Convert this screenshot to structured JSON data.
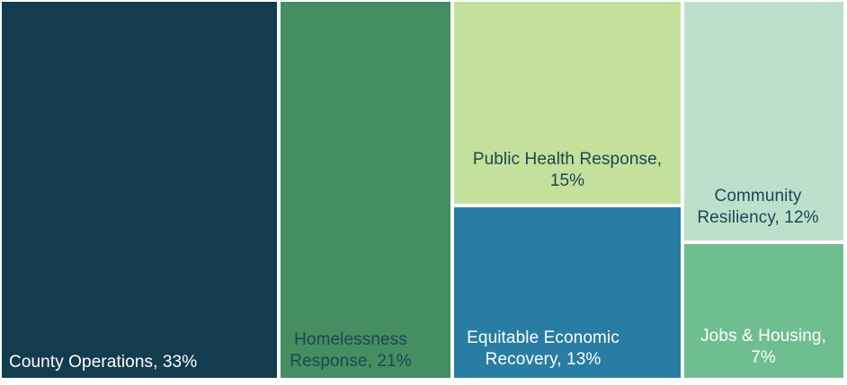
{
  "chart_data": {
    "type": "treemap",
    "title": "",
    "layout": "columnar treemap, white gaps between tiles, labels anchored to tile bottoms",
    "background": "#ffffff",
    "categories": [
      "County Operations",
      "Homelessness Response",
      "Public Health Response",
      "Equitable Economic Recovery",
      "Community Resiliency",
      "Jobs & Housing"
    ],
    "values": [
      33,
      21,
      15,
      13,
      12,
      7
    ],
    "items": [
      {
        "label": "County Operations",
        "value_pct": 33,
        "display": "County Operations, 33%",
        "color": "#143c4f",
        "text_color": "#ffffff"
      },
      {
        "label": "Homelessness Response",
        "value_pct": 21,
        "display": "Homelessness Response, 21%",
        "color": "#448e61",
        "text_color": "#1d4655"
      },
      {
        "label": "Public Health Response",
        "value_pct": 15,
        "display": "Public Health Response, 15%",
        "color": "#c3e19c",
        "text_color": "#1d4655"
      },
      {
        "label": "Equitable Economic Recovery",
        "value_pct": 13,
        "display": "Equitable Economic Recovery, 13%",
        "color": "#297da4",
        "text_color": "#ffffff"
      },
      {
        "label": "Community Resiliency",
        "value_pct": 12,
        "display": "Community Resiliency, 12%",
        "color": "#bce0cc",
        "text_color": "#1d4655"
      },
      {
        "label": "Jobs & Housing",
        "value_pct": 7,
        "display": "Jobs & Housing, 7%",
        "color": "#6fbe90",
        "text_color": "#ffffff"
      }
    ]
  }
}
